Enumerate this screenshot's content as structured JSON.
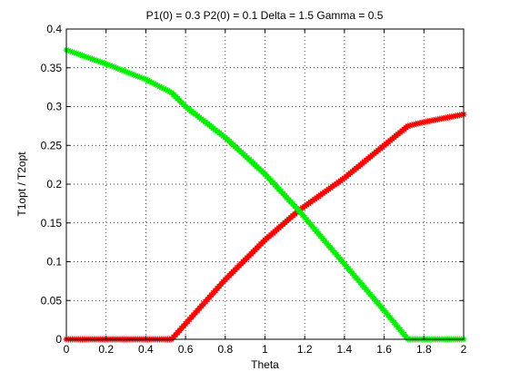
{
  "chart_data": {
    "type": "line",
    "title": "P1(0) = 0.3 P2(0) = 0.1 Delta = 1.5 Gamma = 0.5",
    "xlabel": "Theta",
    "ylabel": "T1opt / T2opt",
    "xlim": [
      0,
      2
    ],
    "ylim": [
      0,
      0.4
    ],
    "xticks": [
      0,
      0.2,
      0.4,
      0.6,
      0.8,
      1,
      1.2,
      1.4,
      1.6,
      1.8,
      2
    ],
    "xtick_labels": [
      "0",
      "0.2",
      "0.4",
      "0.6",
      "0.8",
      "1",
      "1.2",
      "1.4",
      "1.6",
      "1.8",
      "2"
    ],
    "yticks": [
      0,
      0.05,
      0.1,
      0.15,
      0.2,
      0.25,
      0.3,
      0.35,
      0.4
    ],
    "ytick_labels": [
      "0",
      "0.05",
      "0.1",
      "0.15",
      "0.2",
      "0.25",
      "0.3",
      "0.35",
      "0.4"
    ],
    "grid": true,
    "grid_style": "dotted",
    "legend": "none",
    "marker": "*",
    "series": [
      {
        "color": "#ff0000",
        "x": [
          0,
          0.5,
          0.53,
          0.6,
          0.8,
          1.0,
          1.17,
          1.4,
          1.6,
          1.72,
          1.8,
          2.0
        ],
        "y": [
          0,
          0,
          0.0,
          0.02,
          0.077,
          0.128,
          0.166,
          0.208,
          0.25,
          0.275,
          0.28,
          0.29
        ]
      },
      {
        "color": "#00ee00",
        "x": [
          0,
          0.2,
          0.4,
          0.53,
          0.6,
          0.8,
          1.0,
          1.17,
          1.4,
          1.6,
          1.72,
          1.8,
          2.0
        ],
        "y": [
          0.373,
          0.355,
          0.335,
          0.318,
          0.3,
          0.26,
          0.213,
          0.166,
          0.097,
          0.037,
          0.0,
          0,
          0
        ]
      }
    ]
  }
}
